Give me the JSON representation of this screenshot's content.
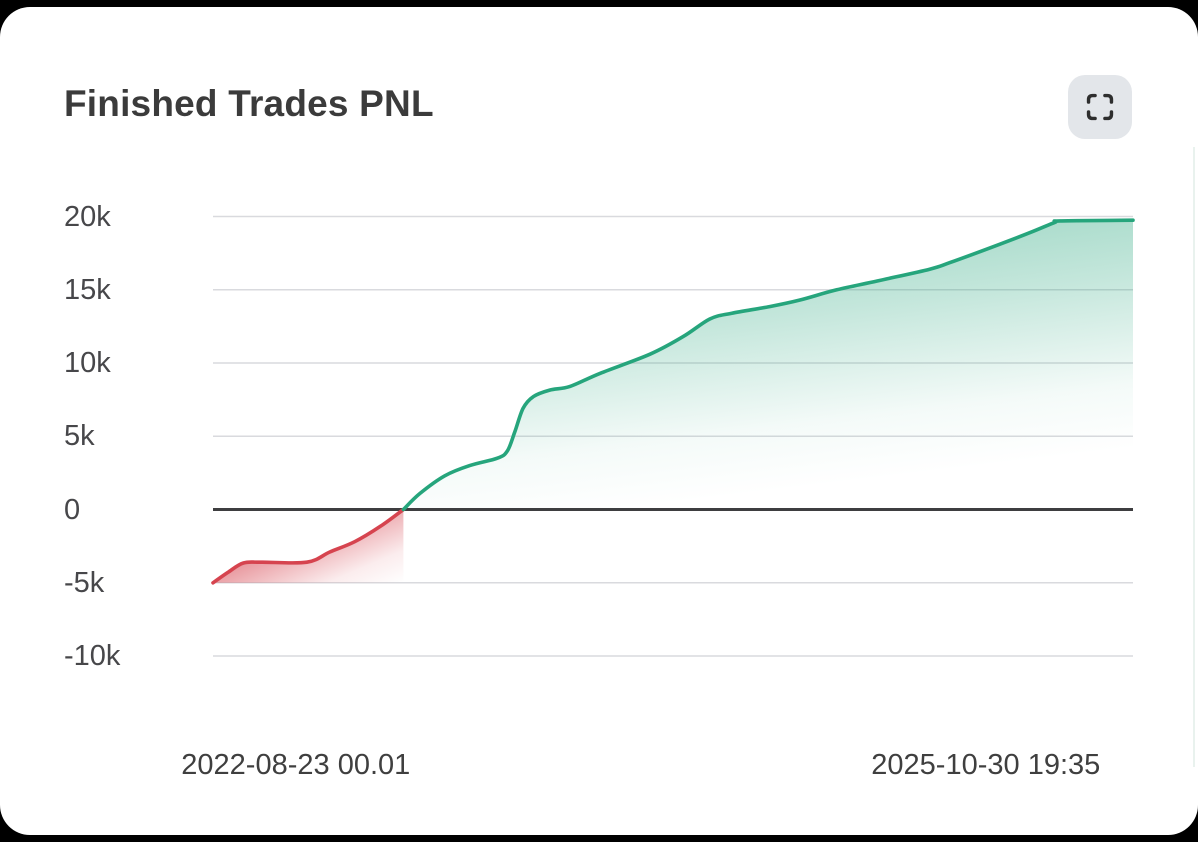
{
  "page": {
    "background_color": "#000000",
    "card_background": "#ffffff"
  },
  "header": {
    "title": "Finished Trades PNL",
    "fullscreen_button": {
      "icon": "fullscreen-scan-icon",
      "background": "#e3e6ea",
      "icon_color": "#2e2e2e"
    }
  },
  "chart_data": {
    "type": "area",
    "title": "Finished Trades PNL",
    "xlabel": "",
    "ylabel": "",
    "y_unit": "k",
    "ylim_k": [
      -10,
      20
    ],
    "grid": true,
    "grid_color": "#d9dade",
    "zero_line_color": "#3e3e40",
    "y_ticks": [
      {
        "label": "20k",
        "value": 20
      },
      {
        "label": "15k",
        "value": 15
      },
      {
        "label": "10k",
        "value": 10
      },
      {
        "label": "5k",
        "value": 5
      },
      {
        "label": "0",
        "value": 0
      },
      {
        "label": "-5k",
        "value": -5
      },
      {
        "label": "-10k",
        "value": -10
      }
    ],
    "x_ticks": [
      {
        "label": "2022-08-23 00.01",
        "position": 0.09
      },
      {
        "label": "2025-10-30 19:35",
        "position": 0.84
      }
    ],
    "series": [
      {
        "name": "Finished Trades PNL",
        "positive_color": "#26a57c",
        "negative_color": "#d6444f",
        "points_fraction_vs_k": [
          [
            0.0,
            -5.0
          ],
          [
            0.016,
            -4.3
          ],
          [
            0.033,
            -3.65
          ],
          [
            0.053,
            -3.6
          ],
          [
            0.102,
            -3.6
          ],
          [
            0.127,
            -2.9
          ],
          [
            0.154,
            -2.2
          ],
          [
            0.182,
            -1.15
          ],
          [
            0.207,
            0.0
          ],
          [
            0.225,
            1.1
          ],
          [
            0.252,
            2.3
          ],
          [
            0.279,
            3.0
          ],
          [
            0.309,
            3.5
          ],
          [
            0.32,
            4.0
          ],
          [
            0.328,
            5.3
          ],
          [
            0.337,
            6.9
          ],
          [
            0.348,
            7.7
          ],
          [
            0.366,
            8.15
          ],
          [
            0.388,
            8.4
          ],
          [
            0.421,
            9.3
          ],
          [
            0.475,
            10.6
          ],
          [
            0.511,
            11.8
          ],
          [
            0.54,
            13.0
          ],
          [
            0.564,
            13.4
          ],
          [
            0.605,
            13.85
          ],
          [
            0.638,
            14.3
          ],
          [
            0.678,
            15.0
          ],
          [
            0.722,
            15.6
          ],
          [
            0.779,
            16.4
          ],
          [
            0.801,
            16.85
          ],
          [
            0.855,
            18.1
          ],
          [
            0.888,
            18.9
          ],
          [
            0.915,
            19.6
          ],
          [
            0.921,
            19.7
          ],
          [
            1.0,
            19.75
          ]
        ]
      }
    ]
  }
}
